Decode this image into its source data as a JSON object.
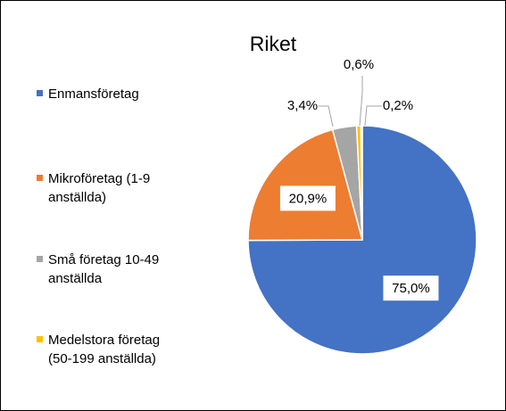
{
  "chart_data": {
    "type": "pie",
    "title": "Riket",
    "categories": [
      "Enmansföretag",
      "Mikroföretag (1-9 anställda)",
      "Små företag 10-49 anställda",
      "Medelstora företag (50-199 anställda)",
      null
    ],
    "values": [
      75.0,
      20.9,
      3.4,
      0.6,
      0.2
    ],
    "value_labels": [
      "75,0%",
      "20,9%",
      "3,4%",
      "0,6%",
      "0,2%"
    ],
    "colors": [
      "#4472c4",
      "#ed7d31",
      "#a5a5a5",
      "#ffc000",
      "#5b9bd5"
    ],
    "legend": "left"
  }
}
